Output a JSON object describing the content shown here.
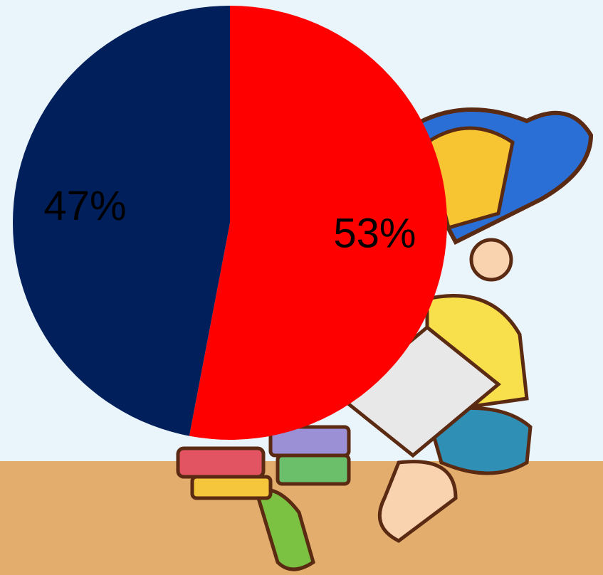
{
  "chart_data": {
    "type": "pie",
    "values": [
      53,
      47
    ],
    "value_labels": [
      "53%",
      "47%"
    ],
    "colors": [
      "#ff0000",
      "#001f5b"
    ]
  }
}
